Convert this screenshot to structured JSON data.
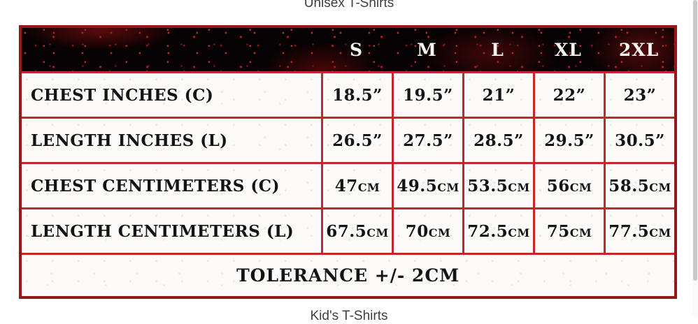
{
  "page": {
    "title_top": "Unisex T-Shirts",
    "title_bottom": "Kid's T-Shirts"
  },
  "size_chart": {
    "columns": [
      "S",
      "M",
      "L",
      "XL",
      "2XL"
    ],
    "rows": [
      {
        "label": "CHEST INCHES (C)",
        "values": [
          "18.5”",
          "19.5”",
          "21”",
          "22”",
          "23”"
        ]
      },
      {
        "label": "LENGTH INCHES (L)",
        "values": [
          "26.5”",
          "27.5”",
          "28.5”",
          "29.5”",
          "30.5”"
        ]
      },
      {
        "label": "CHEST CENTIMETERS (C)",
        "values": [
          "47cm",
          "49.5cm",
          "53.5cm",
          "56cm",
          "58.5cm"
        ]
      },
      {
        "label": "LENGTH CENTIMETERS (L)",
        "values": [
          "67.5cm",
          "70cm",
          "72.5cm",
          "75cm",
          "77.5cm"
        ]
      }
    ],
    "footer": "TOLERANCE +/- 2CM"
  },
  "colors": {
    "border_inner": "#c1272d",
    "border_outer": "#97181b",
    "header_bg": "#070203",
    "header_text": "#f7f5f2",
    "cell_bg": "#fbfaf9",
    "cell_text": "#141414",
    "title_text": "#3e3e3e",
    "scrollbar_thumb": "#c8c8c8"
  }
}
